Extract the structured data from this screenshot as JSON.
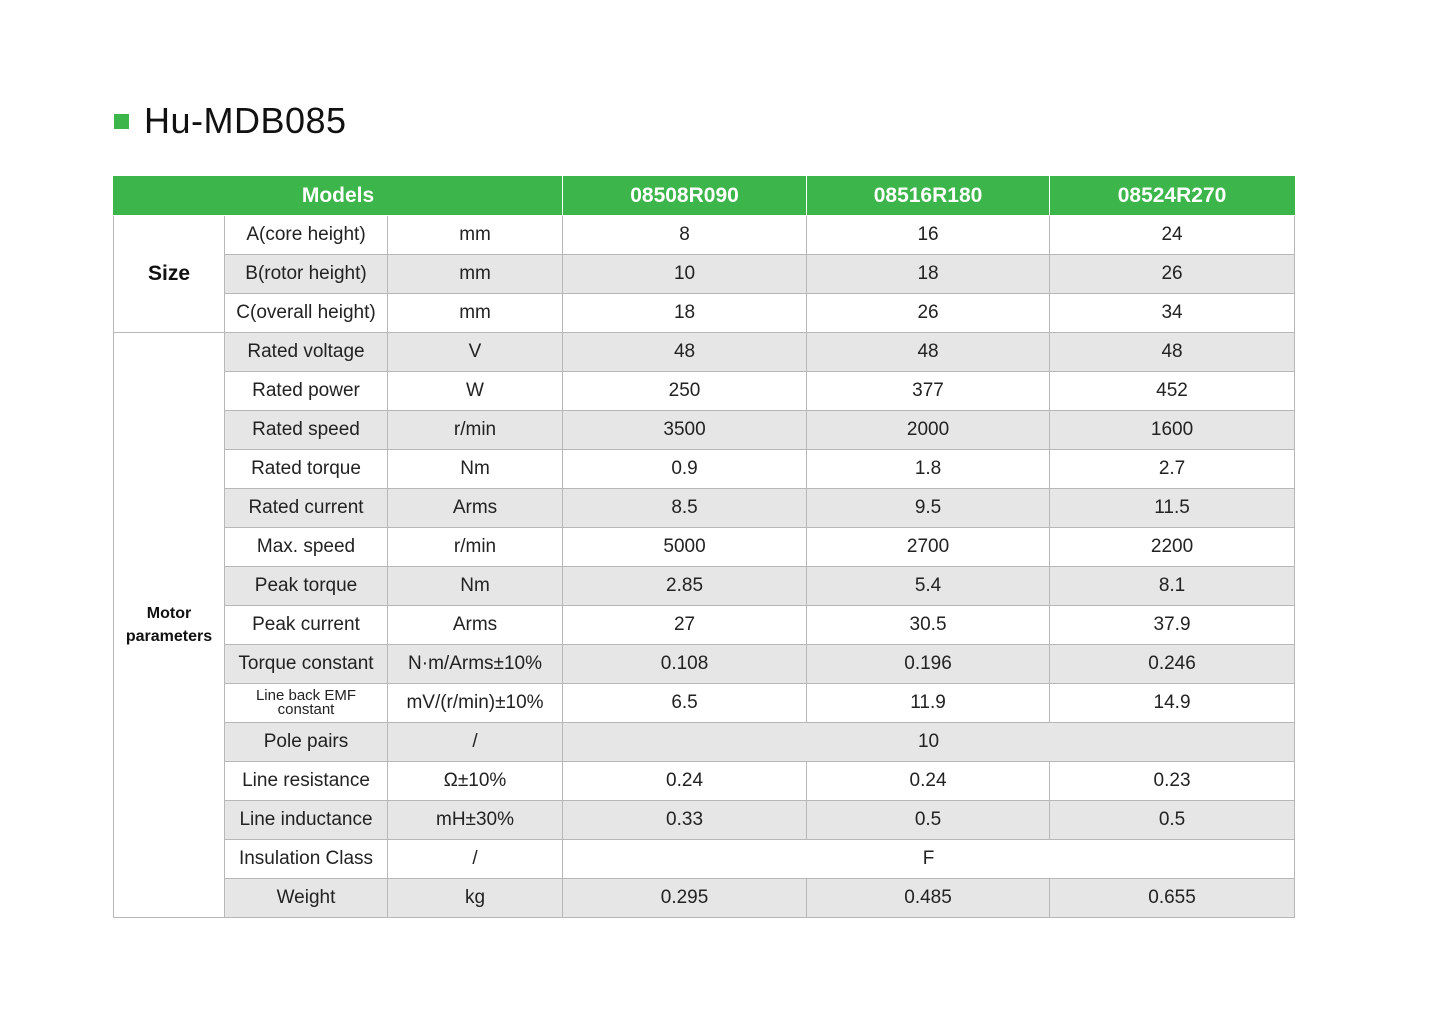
{
  "title": "Hu-MDB085",
  "colors": {
    "accent": "#3cb54a",
    "shade": "#e6e6e6"
  },
  "header": {
    "models_label": "Models",
    "models": [
      "08508R090",
      "08516R180",
      "08524R270"
    ]
  },
  "groups": {
    "size": "Size",
    "motor_line1": "Motor",
    "motor_line2": "parameters"
  },
  "rows": [
    {
      "param": "A(core height)",
      "unit": "mm",
      "values": [
        "8",
        "16",
        "24"
      ]
    },
    {
      "param": "B(rotor height)",
      "unit": "mm",
      "values": [
        "10",
        "18",
        "26"
      ]
    },
    {
      "param": "C(overall height)",
      "unit": "mm",
      "values": [
        "18",
        "26",
        "34"
      ]
    },
    {
      "param": "Rated voltage",
      "unit": "V",
      "values": [
        "48",
        "48",
        "48"
      ]
    },
    {
      "param": "Rated power",
      "unit": "W",
      "values": [
        "250",
        "377",
        "452"
      ]
    },
    {
      "param": "Rated speed",
      "unit": "r/min",
      "values": [
        "3500",
        "2000",
        "1600"
      ]
    },
    {
      "param": "Rated torque",
      "unit": "Nm",
      "values": [
        "0.9",
        "1.8",
        "2.7"
      ]
    },
    {
      "param": "Rated current",
      "unit": "Arms",
      "values": [
        "8.5",
        "9.5",
        "11.5"
      ]
    },
    {
      "param": "Max. speed",
      "unit": "r/min",
      "values": [
        "5000",
        "2700",
        "2200"
      ]
    },
    {
      "param": "Peak torque",
      "unit": "Nm",
      "values": [
        "2.85",
        "5.4",
        "8.1"
      ]
    },
    {
      "param": "Peak current",
      "unit": "Arms",
      "values": [
        "27",
        "30.5",
        "37.9"
      ]
    },
    {
      "param": "Torque constant",
      "unit": "N·m/Arms±10%",
      "values": [
        "0.108",
        "0.196",
        "0.246"
      ]
    },
    {
      "param_line1": "Line back EMF",
      "param_line2": "constant",
      "unit": "mV/(r/min)±10%",
      "values": [
        "6.5",
        "11.9",
        "14.9"
      ]
    },
    {
      "param": "Pole pairs",
      "unit": "/",
      "value": "10"
    },
    {
      "param": "Line resistance",
      "unit": "Ω±10%",
      "values": [
        "0.24",
        "0.24",
        "0.23"
      ]
    },
    {
      "param": "Line inductance",
      "unit": "mH±30%",
      "values": [
        "0.33",
        "0.5",
        "0.5"
      ]
    },
    {
      "param": "Insulation Class",
      "unit": "/",
      "value": "F"
    },
    {
      "param": "Weight",
      "unit": "kg",
      "values": [
        "0.295",
        "0.485",
        "0.655"
      ]
    }
  ]
}
